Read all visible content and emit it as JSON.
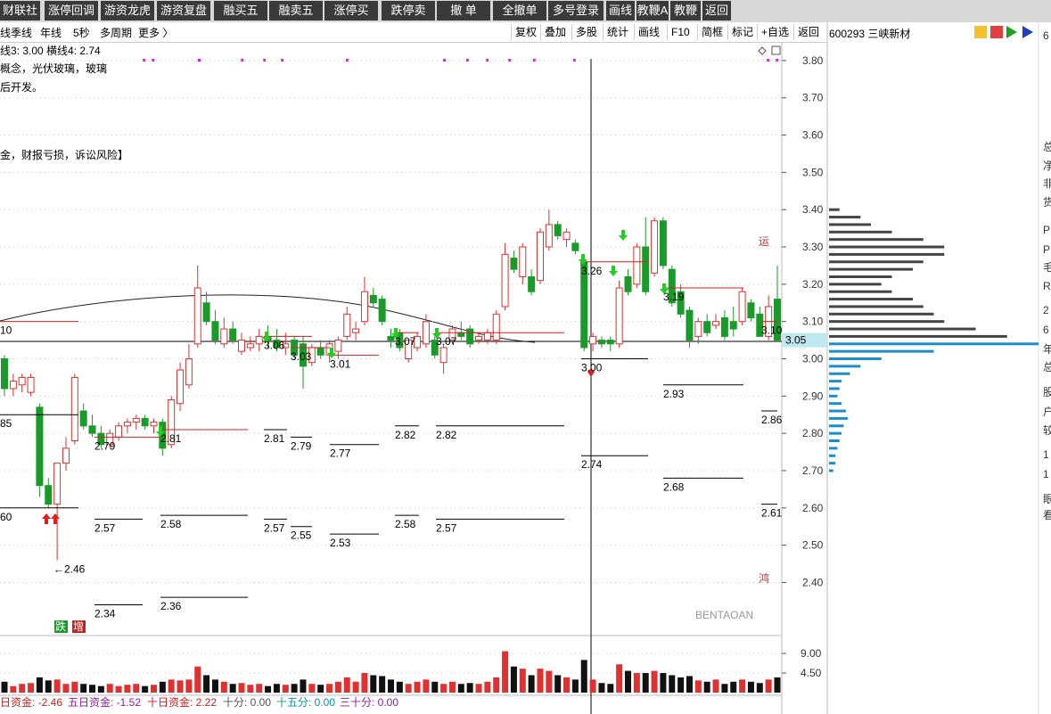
{
  "toolbar": {
    "buttons": [
      "财联社",
      "涨停回调",
      "游资龙虎",
      "游资复盘",
      "融买五",
      "融卖五",
      "涨停买",
      "跌停卖",
      "撤 单",
      "全撤单",
      "多号登录",
      "画线",
      "教鞭A",
      "教鞭B",
      "返回"
    ]
  },
  "period_bar": {
    "items": [
      "线",
      "季线",
      "年线",
      "5秒",
      "多周期",
      "更多 〉"
    ]
  },
  "chart_tools": {
    "buttons": [
      "复权",
      "叠加",
      "多股",
      "统计",
      "画线",
      "F10",
      "简框",
      "标记",
      "+自选",
      "返回"
    ]
  },
  "stock": {
    "code": "600293",
    "name": "三峡新材"
  },
  "info_lines": [
    "线3: 3.00  横线4: 2.74",
    "概念，光伏玻璃，玻璃",
    "后开发。",
    "金，财报亏损，诉讼风险】"
  ],
  "chart_data": {
    "type": "candlestick",
    "up_color": "#e03030",
    "down_color": "#1a9a2a",
    "ylim": [
      2.26,
      3.85
    ],
    "yticks": [
      {
        "value": 3.8,
        "label": "3.80"
      },
      {
        "value": 3.7,
        "label": "3.70"
      },
      {
        "value": 3.6,
        "label": "3.60"
      },
      {
        "value": 3.5,
        "label": "3.50"
      },
      {
        "value": 3.4,
        "label": "3.40"
      },
      {
        "value": 3.3,
        "label": "3.30"
      },
      {
        "value": 3.2,
        "label": "3.20"
      },
      {
        "value": 3.1,
        "label": "3.10"
      },
      {
        "value": 3.0,
        "label": "3.00"
      },
      {
        "value": 2.9,
        "label": "2.90"
      },
      {
        "value": 2.8,
        "label": "2.80"
      },
      {
        "value": 2.7,
        "label": "2.70"
      },
      {
        "value": 2.6,
        "label": "2.60"
      },
      {
        "value": 2.5,
        "label": "2.50"
      },
      {
        "value": 2.4,
        "label": "2.40"
      }
    ],
    "ohlc": [
      [
        3.0,
        3.01,
        2.9,
        2.92
      ],
      [
        2.92,
        2.96,
        2.9,
        2.94
      ],
      [
        2.93,
        2.96,
        2.91,
        2.95
      ],
      [
        2.91,
        2.96,
        2.9,
        2.95
      ],
      [
        2.87,
        2.88,
        2.63,
        2.66
      ],
      [
        2.66,
        2.68,
        2.6,
        2.61
      ],
      [
        2.61,
        2.72,
        2.46,
        2.72
      ],
      [
        2.72,
        2.79,
        2.7,
        2.76
      ],
      [
        2.78,
        2.96,
        2.77,
        2.95
      ],
      [
        2.86,
        2.88,
        2.81,
        2.82
      ],
      [
        2.82,
        2.85,
        2.79,
        2.8
      ],
      [
        2.8,
        2.82,
        2.76,
        2.77
      ],
      [
        2.77,
        2.81,
        2.76,
        2.8
      ],
      [
        2.79,
        2.83,
        2.78,
        2.82
      ],
      [
        2.82,
        2.84,
        2.8,
        2.83
      ],
      [
        2.83,
        2.85,
        2.81,
        2.84
      ],
      [
        2.84,
        2.85,
        2.81,
        2.82
      ],
      [
        2.82,
        2.84,
        2.8,
        2.83
      ],
      [
        2.83,
        2.84,
        2.74,
        2.76
      ],
      [
        2.77,
        2.9,
        2.76,
        2.89
      ],
      [
        2.88,
        2.99,
        2.86,
        2.97
      ],
      [
        2.93,
        3.04,
        2.92,
        3.0
      ],
      [
        3.04,
        3.25,
        3.03,
        3.19
      ],
      [
        3.15,
        3.18,
        3.09,
        3.1
      ],
      [
        3.1,
        3.13,
        3.04,
        3.05
      ],
      [
        3.04,
        3.11,
        3.03,
        3.08
      ],
      [
        3.08,
        3.1,
        3.04,
        3.05
      ],
      [
        3.02,
        3.07,
        3.01,
        3.05
      ],
      [
        3.03,
        3.06,
        3.02,
        3.04
      ],
      [
        3.04,
        3.08,
        3.02,
        3.06
      ],
      [
        3.06,
        3.09,
        3.03,
        3.05
      ],
      [
        3.05,
        3.08,
        3.02,
        3.03
      ],
      [
        3.03,
        3.07,
        3.01,
        3.04
      ],
      [
        3.05,
        3.06,
        3.0,
        3.01
      ],
      [
        3.04,
        3.06,
        2.92,
        2.98
      ],
      [
        2.99,
        3.04,
        2.98,
        3.03
      ],
      [
        3.03,
        3.05,
        3.0,
        3.01
      ],
      [
        3.01,
        3.05,
        2.99,
        3.04
      ],
      [
        3.02,
        3.06,
        3.0,
        3.05
      ],
      [
        3.06,
        3.14,
        3.05,
        3.12
      ],
      [
        3.07,
        3.1,
        3.05,
        3.08
      ],
      [
        3.1,
        3.22,
        3.09,
        3.18
      ],
      [
        3.17,
        3.19,
        3.14,
        3.15
      ],
      [
        3.16,
        3.17,
        3.09,
        3.1
      ],
      [
        3.06,
        3.08,
        3.03,
        3.05
      ],
      [
        3.07,
        3.08,
        3.02,
        3.03
      ],
      [
        3.0,
        3.05,
        2.99,
        3.05
      ],
      [
        3.03,
        3.07,
        3.02,
        3.06
      ],
      [
        3.04,
        3.12,
        3.03,
        3.1
      ],
      [
        3.05,
        3.06,
        3.0,
        3.01
      ],
      [
        2.99,
        3.04,
        2.96,
        3.03
      ],
      [
        3.05,
        3.09,
        3.04,
        3.08
      ],
      [
        3.07,
        3.1,
        3.05,
        3.06
      ],
      [
        3.08,
        3.09,
        3.03,
        3.04
      ],
      [
        3.05,
        3.07,
        3.04,
        3.06
      ],
      [
        3.05,
        3.08,
        3.04,
        3.07
      ],
      [
        3.05,
        3.13,
        3.04,
        3.12
      ],
      [
        3.14,
        3.31,
        3.13,
        3.28
      ],
      [
        3.27,
        3.29,
        3.23,
        3.24
      ],
      [
        3.22,
        3.31,
        3.2,
        3.3
      ],
      [
        3.22,
        3.24,
        3.17,
        3.18
      ],
      [
        3.21,
        3.35,
        3.2,
        3.34
      ],
      [
        3.3,
        3.4,
        3.29,
        3.36
      ],
      [
        3.36,
        3.37,
        3.32,
        3.33
      ],
      [
        3.32,
        3.35,
        3.3,
        3.34
      ],
      [
        3.31,
        3.32,
        3.28,
        3.29
      ],
      [
        3.26,
        3.27,
        3.02,
        3.03
      ],
      [
        3.04,
        3.07,
        3.02,
        3.06
      ],
      [
        3.05,
        3.06,
        3.03,
        3.04
      ],
      [
        3.05,
        3.06,
        3.02,
        3.04
      ],
      [
        3.04,
        3.21,
        3.03,
        3.19
      ],
      [
        3.22,
        3.24,
        3.17,
        3.18
      ],
      [
        3.2,
        3.31,
        3.19,
        3.3
      ],
      [
        3.3,
        3.38,
        3.17,
        3.18
      ],
      [
        3.23,
        3.38,
        3.22,
        3.37
      ],
      [
        3.37,
        3.38,
        3.24,
        3.25
      ],
      [
        3.24,
        3.25,
        3.14,
        3.15
      ],
      [
        3.18,
        3.2,
        3.11,
        3.12
      ],
      [
        3.13,
        3.14,
        3.03,
        3.05
      ],
      [
        3.06,
        3.11,
        3.04,
        3.1
      ],
      [
        3.1,
        3.12,
        3.06,
        3.07
      ],
      [
        3.09,
        3.12,
        3.08,
        3.1
      ],
      [
        3.11,
        3.13,
        3.05,
        3.06
      ],
      [
        3.1,
        3.14,
        3.06,
        3.08
      ],
      [
        3.1,
        3.19,
        3.09,
        3.18
      ],
      [
        3.15,
        3.16,
        3.1,
        3.11
      ],
      [
        3.12,
        3.14,
        3.06,
        3.06
      ],
      [
        3.06,
        3.17,
        3.05,
        3.14
      ],
      [
        3.16,
        3.25,
        3.05,
        3.05
      ]
    ],
    "current_price": {
      "value": 3.05,
      "label": "3.05"
    },
    "levels": [
      {
        "value": 3.1,
        "label": "10",
        "color": "#d02020"
      },
      {
        "value": 2.85,
        "label": "85",
        "color": "#000000"
      },
      {
        "value": 2.6,
        "label": "60",
        "color": "#000000"
      },
      {
        "value": 2.46,
        "label": "←2.46",
        "color": "#000000"
      },
      {
        "value": 2.79,
        "label": "2.79",
        "color": "#d02020"
      },
      {
        "value": 2.57,
        "label": "2.57",
        "color": "#000000"
      },
      {
        "value": 2.34,
        "label": "2.34",
        "color": "#000000"
      },
      {
        "value": 2.81,
        "label": "2.81",
        "color": "#d02020"
      },
      {
        "value": 2.58,
        "label": "2.58",
        "color": "#000000"
      },
      {
        "value": 2.36,
        "label": "2.36",
        "color": "#000000"
      },
      {
        "value": 3.06,
        "label": "3.06",
        "color": "#d02020"
      },
      {
        "value": 2.81,
        "label": "2.81",
        "color": "#000000"
      },
      {
        "value": 2.57,
        "label": "2.57",
        "color": "#000000"
      },
      {
        "value": 3.03,
        "label": "3.03",
        "color": "#d02020"
      },
      {
        "value": 2.79,
        "label": "2.79",
        "color": "#000000"
      },
      {
        "value": 2.55,
        "label": "2.55",
        "color": "#000000"
      },
      {
        "value": 3.01,
        "label": "3.01",
        "color": "#d02020"
      },
      {
        "value": 2.77,
        "label": "2.77",
        "color": "#000000"
      },
      {
        "value": 2.53,
        "label": "2.53",
        "color": "#000000"
      },
      {
        "value": 3.07,
        "label": "3.07",
        "color": "#d02020"
      },
      {
        "value": 2.82,
        "label": "2.82",
        "color": "#000000"
      },
      {
        "value": 2.58,
        "label": "2.58",
        "color": "#000000"
      },
      {
        "value": 3.07,
        "label": "3.07",
        "color": "#d02020"
      },
      {
        "value": 2.82,
        "label": "2.82",
        "color": "#000000"
      },
      {
        "value": 2.57,
        "label": "2.57",
        "color": "#000000"
      },
      {
        "value": 3.26,
        "label": "3.26",
        "color": "#d02020"
      },
      {
        "value": 3.0,
        "label": "3.00",
        "color": "#000000"
      },
      {
        "value": 2.74,
        "label": "2.74",
        "color": "#000000"
      },
      {
        "value": 3.19,
        "label": "3.19",
        "color": "#d02020"
      },
      {
        "value": 2.93,
        "label": "2.93",
        "color": "#000000"
      },
      {
        "value": 2.68,
        "label": "2.68",
        "color": "#000000"
      },
      {
        "value": 3.1,
        "label": "3.10",
        "color": "#d02020"
      },
      {
        "value": 2.86,
        "label": "2.86",
        "color": "#000000"
      },
      {
        "value": 2.61,
        "label": "2.61",
        "color": "#000000"
      }
    ],
    "annotations": [
      "运",
      "鸿",
      "BENTAOAN",
      "跌",
      "增"
    ],
    "volume": {
      "ylim": [
        0,
        12.7
      ],
      "yticks": [
        {
          "value": 9,
          "label": "9.00"
        },
        {
          "value": 4.5,
          "label": "4.50"
        }
      ],
      "values": [
        2.5,
        1.5,
        2,
        2.2,
        3.5,
        2.8,
        3,
        2,
        2.5,
        2,
        1.8,
        1.5,
        2,
        1.5,
        1.8,
        2,
        1.5,
        1.8,
        2.5,
        3,
        2.8,
        3,
        6,
        4,
        3,
        2.5,
        2,
        2.2,
        1.8,
        2,
        1.5,
        2,
        1.8,
        2,
        3,
        2,
        1.8,
        2,
        2.5,
        3.5,
        2.5,
        4.5,
        4,
        3.8,
        3,
        2.5,
        2,
        2.5,
        3,
        2.5,
        2,
        2.5,
        2,
        2.2,
        2,
        2.5,
        3.5,
        9.5,
        6,
        5.5,
        4,
        5.5,
        5,
        4,
        3.5,
        3,
        7.5,
        3,
        2.2,
        2,
        6.5,
        5,
        4.5,
        4.5,
        5,
        4.5,
        4,
        3.5,
        3.8,
        2.8,
        2.5,
        3,
        2,
        2.5,
        3,
        2.5,
        2.2,
        3,
        3.5
      ]
    },
    "chip_profile": {
      "above_color": "#444444",
      "below_color": "#1e8cc8",
      "prices": [
        3.4,
        3.38,
        3.36,
        3.34,
        3.32,
        3.3,
        3.28,
        3.26,
        3.24,
        3.22,
        3.2,
        3.18,
        3.16,
        3.14,
        3.12,
        3.1,
        3.08,
        3.06,
        3.04,
        3.02,
        3.0,
        2.98,
        2.96,
        2.94,
        2.92,
        2.9,
        2.88,
        2.86,
        2.84,
        2.82,
        2.8,
        2.78,
        2.76,
        2.74,
        2.72,
        2.7
      ],
      "values": [
        5,
        15,
        20,
        30,
        45,
        55,
        55,
        45,
        40,
        30,
        25,
        30,
        40,
        45,
        50,
        55,
        70,
        85,
        100,
        50,
        25,
        15,
        10,
        6,
        5,
        4,
        6,
        8,
        9,
        7,
        6,
        5,
        4,
        3,
        3,
        2
      ]
    }
  },
  "fund_flow": [
    "日资金: -2.46",
    "五日资金: -1.52",
    "十日资金: 2.22",
    "十分: 0.00",
    "十五分: 0.00",
    "三十分: 0.00"
  ],
  "side_labels": [
    "6",
    "总",
    "净",
    "非",
    "货",
    "P",
    "P",
    "毛",
    "R",
    "2",
    "6",
    "年",
    "总",
    "股",
    "户",
    "较",
    "1",
    "1",
    "眼",
    "看"
  ]
}
